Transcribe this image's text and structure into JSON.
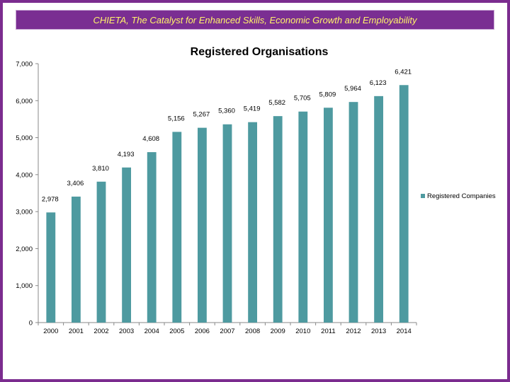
{
  "banner": {
    "text": "CHIETA, The Catalyst for Enhanced Skills, Economic Growth and Employability"
  },
  "colors": {
    "frame": "#7b2c8f",
    "banner_bg": "#7a2e92",
    "banner_text": "#fff36a",
    "bar": "#4e9aa0"
  },
  "chart_data": {
    "type": "bar",
    "title": "Registered Organisations",
    "xlabel": "",
    "ylabel": "",
    "categories": [
      "2000",
      "2001",
      "2002",
      "2003",
      "2004",
      "2005",
      "2006",
      "2007",
      "2008",
      "2009",
      "2010",
      "2011",
      "2012",
      "2013",
      "2014"
    ],
    "series": [
      {
        "name": "Registered Companies",
        "values": [
          2978,
          3406,
          3810,
          4193,
          4608,
          5156,
          5267,
          5360,
          5419,
          5582,
          5705,
          5809,
          5964,
          6123,
          6421
        ],
        "labels": [
          "2,978",
          "3,406",
          "3,810",
          "4,193",
          "4,608",
          "5,156",
          "5,267",
          "5,360",
          "5,419",
          "5,582",
          "5,705",
          "5,809",
          "5,964",
          "6,123",
          "6,421"
        ]
      }
    ],
    "ylim": [
      0,
      7000
    ],
    "yticks": [
      0,
      1000,
      2000,
      3000,
      4000,
      5000,
      6000,
      7000
    ],
    "ytick_labels": [
      "0",
      "1,000",
      "2,000",
      "3,000",
      "4,000",
      "5,000",
      "6,000",
      "7,000"
    ],
    "grid": false,
    "legend_position": "right"
  }
}
